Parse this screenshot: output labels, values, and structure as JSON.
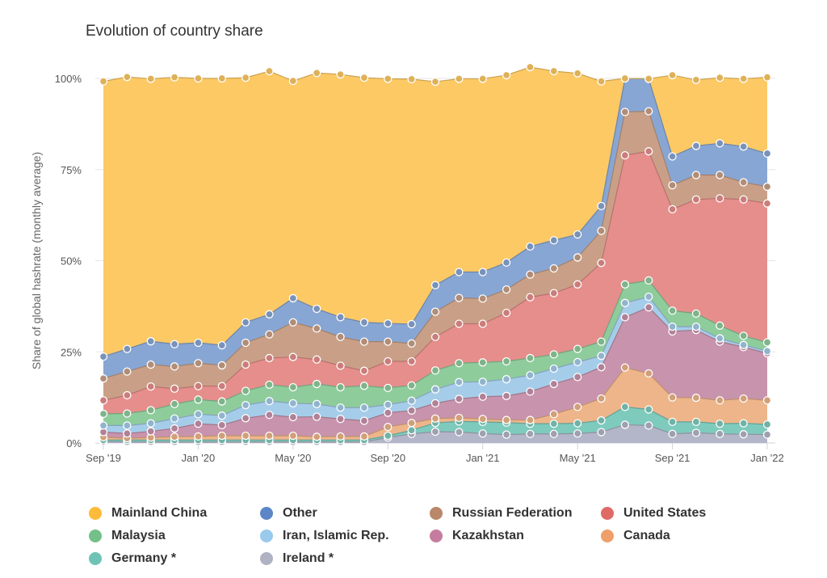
{
  "chart_data": {
    "type": "area",
    "stacked": true,
    "title": "Evolution of country share",
    "ylabel": "Share of global hashrate (monthly average)",
    "xlabel": "",
    "ylim": [
      0,
      100
    ],
    "y_ticks": [
      "0%",
      "25%",
      "50%",
      "75%",
      "100%"
    ],
    "x": [
      "2019-09",
      "2019-10",
      "2019-11",
      "2019-12",
      "2020-01",
      "2020-02",
      "2020-03",
      "2020-04",
      "2020-05",
      "2020-06",
      "2020-07",
      "2020-08",
      "2020-09",
      "2020-10",
      "2020-11",
      "2020-12",
      "2021-01",
      "2021-02",
      "2021-03",
      "2021-04",
      "2021-05",
      "2021-06",
      "2021-07",
      "2021-08",
      "2021-09",
      "2021-10",
      "2021-11",
      "2021-12",
      "2022-01"
    ],
    "x_tick_labels": [
      {
        "index": 0,
        "label": "Sep '19"
      },
      {
        "index": 4,
        "label": "Jan '20"
      },
      {
        "index": 8,
        "label": "May '20"
      },
      {
        "index": 12,
        "label": "Sep '20"
      },
      {
        "index": 16,
        "label": "Jan '21"
      },
      {
        "index": 20,
        "label": "May '21"
      },
      {
        "index": 24,
        "label": "Sep '21"
      },
      {
        "index": 28,
        "label": "Jan '22"
      }
    ],
    "grid": true,
    "legend_position": "bottom",
    "series": [
      {
        "name": "Ireland *",
        "color": "#b3b6c8",
        "values": [
          0.4,
          0.3,
          0.3,
          0.3,
          0.3,
          0.3,
          0.3,
          0.3,
          0.3,
          0.3,
          0.3,
          0.3,
          1.5,
          2.5,
          3.1,
          3.0,
          2.6,
          2.3,
          2.5,
          2.5,
          2.6,
          3.0,
          5.0,
          4.8,
          2.5,
          2.8,
          2.5,
          2.4,
          2.3
        ]
      },
      {
        "name": "Germany *",
        "color": "#7ecbbd",
        "values": [
          0.4,
          0.5,
          0.5,
          0.5,
          0.5,
          0.5,
          0.5,
          0.5,
          0.5,
          0.5,
          0.5,
          0.5,
          0.5,
          1.0,
          2.4,
          2.9,
          3.2,
          3.3,
          2.8,
          2.8,
          2.8,
          3.2,
          4.9,
          4.4,
          3.3,
          3.0,
          2.8,
          3.0,
          2.8
        ]
      },
      {
        "name": "Canada",
        "color": "#eeb58a",
        "values": [
          0.8,
          0.5,
          0.7,
          0.9,
          1.0,
          1.2,
          1.2,
          1.2,
          1.2,
          0.9,
          1.0,
          1.0,
          2.4,
          2.0,
          1.2,
          1.0,
          0.8,
          0.7,
          1.0,
          2.6,
          4.5,
          6.0,
          10.8,
          9.9,
          6.7,
          6.6,
          6.4,
          6.8,
          6.6
        ]
      },
      {
        "name": "Kazakhstan",
        "color": "#c893ac",
        "values": [
          1.4,
          1.3,
          1.7,
          2.3,
          3.5,
          2.9,
          4.8,
          5.7,
          5.1,
          5.5,
          4.8,
          4.3,
          3.9,
          3.4,
          4.2,
          5.2,
          6.1,
          6.6,
          7.8,
          8.3,
          8.2,
          8.6,
          13.8,
          18.1,
          18.1,
          18.6,
          16.1,
          14.1,
          12.9
        ]
      },
      {
        "name": "Iran, Islamic Rep.",
        "color": "#a5cdea",
        "values": [
          1.8,
          2.2,
          2.2,
          2.7,
          2.6,
          2.6,
          3.6,
          3.8,
          3.8,
          3.5,
          3.1,
          3.6,
          2.2,
          2.7,
          3.8,
          4.6,
          4.1,
          4.6,
          4.5,
          4.2,
          4.1,
          3.1,
          3.9,
          2.9,
          1.3,
          0.9,
          0.9,
          0.6,
          0.6
        ]
      },
      {
        "name": "Malaysia",
        "color": "#8fcc9c",
        "values": [
          3.2,
          3.3,
          3.6,
          4.0,
          4.0,
          3.9,
          3.9,
          4.5,
          4.4,
          5.5,
          5.6,
          6.0,
          4.6,
          4.2,
          5.2,
          5.2,
          5.3,
          4.9,
          4.7,
          3.9,
          3.6,
          3.9,
          5.1,
          4.5,
          4.4,
          3.6,
          3.5,
          2.5,
          2.4
        ]
      },
      {
        "name": "United States",
        "color": "#e58e8b",
        "values": [
          3.7,
          5.0,
          6.5,
          4.2,
          3.7,
          4.2,
          7.2,
          7.3,
          8.3,
          6.7,
          5.9,
          4.1,
          7.3,
          6.6,
          9.2,
          10.8,
          10.6,
          13.3,
          16.7,
          16.8,
          17.7,
          21.6,
          35.4,
          35.4,
          27.8,
          31.3,
          34.9,
          37.4,
          38.1
        ]
      },
      {
        "name": "Russian Federation",
        "color": "#c9a087",
        "values": [
          6.0,
          6.5,
          6.0,
          6.1,
          6.3,
          5.7,
          6.0,
          6.5,
          9.5,
          8.5,
          7.9,
          8.0,
          5.4,
          4.9,
          6.9,
          7.1,
          6.9,
          6.4,
          6.2,
          6.8,
          7.4,
          8.8,
          11.9,
          11.0,
          6.6,
          6.7,
          6.4,
          4.7,
          4.6
        ]
      },
      {
        "name": "Other",
        "color": "#88a6d3",
        "values": [
          6.0,
          6.2,
          6.4,
          6.1,
          5.6,
          5.5,
          5.6,
          5.5,
          6.6,
          5.4,
          5.4,
          5.3,
          5.0,
          5.3,
          7.3,
          7.1,
          7.3,
          7.4,
          7.7,
          7.7,
          6.3,
          6.8,
          9.2,
          8.9,
          7.9,
          8.0,
          8.7,
          9.8,
          9.1
        ]
      },
      {
        "name": "Mainland China",
        "color": "#fcc965",
        "values": [
          75.5,
          74.6,
          72.0,
          73.2,
          72.5,
          73.2,
          67.1,
          66.7,
          59.6,
          64.7,
          66.6,
          67.1,
          67.1,
          67.2,
          55.8,
          53.0,
          53.0,
          51.4,
          49.2,
          46.4,
          44.2,
          34.2,
          0.0,
          0.0,
          22.3,
          18.1,
          18.0,
          18.6,
          20.9
        ]
      }
    ]
  },
  "legend": [
    {
      "label": "Mainland China",
      "color": "#fcbb3b"
    },
    {
      "label": "Other",
      "color": "#5d86c8"
    },
    {
      "label": "Russian Federation",
      "color": "#b9876a"
    },
    {
      "label": "United States",
      "color": "#e06a66"
    },
    {
      "label": "Malaysia",
      "color": "#74c088"
    },
    {
      "label": "Iran, Islamic Rep.",
      "color": "#99c9ec"
    },
    {
      "label": "Kazakhstan",
      "color": "#c57d9f"
    },
    {
      "label": "Canada",
      "color": "#ef9f69"
    },
    {
      "label": "Germany *",
      "color": "#6fc3b6"
    },
    {
      "label": "Ireland *",
      "color": "#b0b3c4"
    }
  ]
}
